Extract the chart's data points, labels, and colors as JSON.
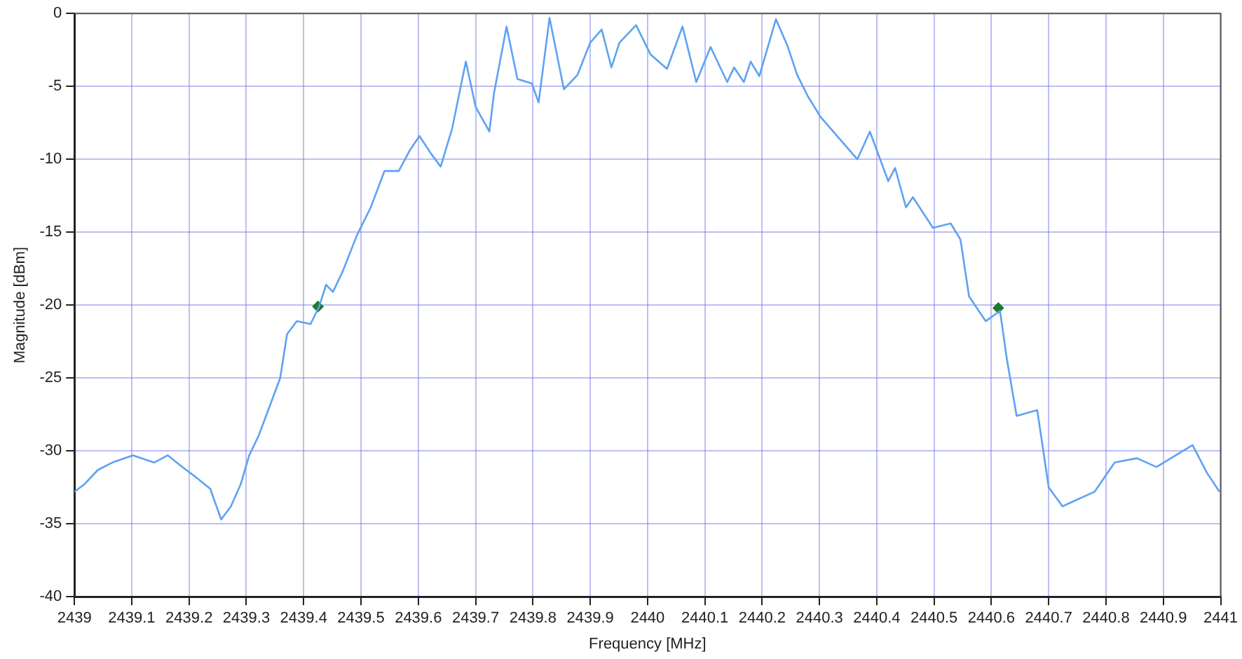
{
  "chart_data": {
    "type": "line",
    "xlabel": "Frequency [MHz]",
    "ylabel": "Magnitude [dBm]",
    "xlim": [
      2439,
      2441
    ],
    "xticks": [
      2439,
      2439.1,
      2439.2,
      2439.3,
      2439.4,
      2439.5,
      2439.6,
      2439.7,
      2439.8,
      2439.9,
      2440,
      2440.1,
      2440.2,
      2440.3,
      2440.4,
      2440.5,
      2440.6,
      2440.7,
      2440.8,
      2440.9,
      2441
    ],
    "ylim": [
      -40,
      0
    ],
    "yticks": [
      -40,
      -35,
      -30,
      -25,
      -20,
      -15,
      -10,
      -5,
      0
    ],
    "grid": true,
    "legend": false,
    "marker": "none",
    "line_style": "solid",
    "series": [
      {
        "color": "#5ea2f2",
        "x": [
          2439.0,
          2439.017,
          2439.041,
          2439.066,
          2439.102,
          2439.139,
          2439.163,
          2439.188,
          2439.212,
          2439.237,
          2439.256,
          2439.273,
          2439.29,
          2439.305,
          2439.322,
          2439.341,
          2439.359,
          2439.371,
          2439.388,
          2439.412,
          2439.427,
          2439.439,
          2439.451,
          2439.468,
          2439.493,
          2439.517,
          2439.541,
          2439.566,
          2439.585,
          2439.602,
          2439.622,
          2439.639,
          2439.659,
          2439.683,
          2439.7,
          2439.724,
          2439.732,
          2439.754,
          2439.773,
          2439.798,
          2439.81,
          2439.829,
          2439.854,
          2439.878,
          2439.9,
          2439.92,
          2439.937,
          2439.951,
          2439.98,
          2440.005,
          2440.034,
          2440.061,
          2440.085,
          2440.11,
          2440.139,
          2440.151,
          2440.168,
          2440.18,
          2440.195,
          2440.224,
          2440.244,
          2440.261,
          2440.28,
          2440.302,
          2440.366,
          2440.388,
          2440.42,
          2440.432,
          2440.451,
          2440.463,
          2440.498,
          2440.529,
          2440.546,
          2440.561,
          2440.59,
          2440.615,
          2440.627,
          2440.644,
          2440.68,
          2440.7,
          2440.724,
          2440.78,
          2440.815,
          2440.854,
          2440.888,
          2440.951,
          2440.976,
          2440.998
        ],
        "values": [
          -32.8,
          -32.3,
          -31.3,
          -30.8,
          -30.3,
          -30.8,
          -30.3,
          -31.1,
          -31.8,
          -32.6,
          -34.7,
          -33.8,
          -32.3,
          -30.3,
          -28.9,
          -26.9,
          -25.0,
          -22.0,
          -21.1,
          -21.3,
          -20.1,
          -18.6,
          -19.1,
          -17.7,
          -15.2,
          -13.3,
          -10.8,
          -10.8,
          -9.4,
          -8.4,
          -9.6,
          -10.5,
          -7.9,
          -3.3,
          -6.4,
          -8.1,
          -5.5,
          -0.9,
          -4.5,
          -4.8,
          -6.1,
          -0.3,
          -5.2,
          -4.2,
          -2.0,
          -1.1,
          -3.7,
          -2.0,
          -0.8,
          -2.8,
          -3.8,
          -0.9,
          -4.7,
          -2.3,
          -4.7,
          -3.7,
          -4.7,
          -3.3,
          -4.3,
          -0.4,
          -2.2,
          -4.2,
          -5.7,
          -7.1,
          -10.0,
          -8.1,
          -11.5,
          -10.6,
          -13.3,
          -12.6,
          -14.7,
          -14.4,
          -15.5,
          -19.4,
          -21.1,
          -20.4,
          -23.7,
          -27.6,
          -27.2,
          -32.5,
          -33.8,
          -32.8,
          -30.8,
          -30.5,
          -31.1,
          -29.6,
          -31.5,
          -32.8
        ]
      },
      {
        "type": "scatter",
        "color": "#1e7a2e",
        "marker": "diamond",
        "x": [
          2439.425,
          2440.612
        ],
        "values": [
          -20.1,
          -20.2
        ]
      }
    ]
  }
}
